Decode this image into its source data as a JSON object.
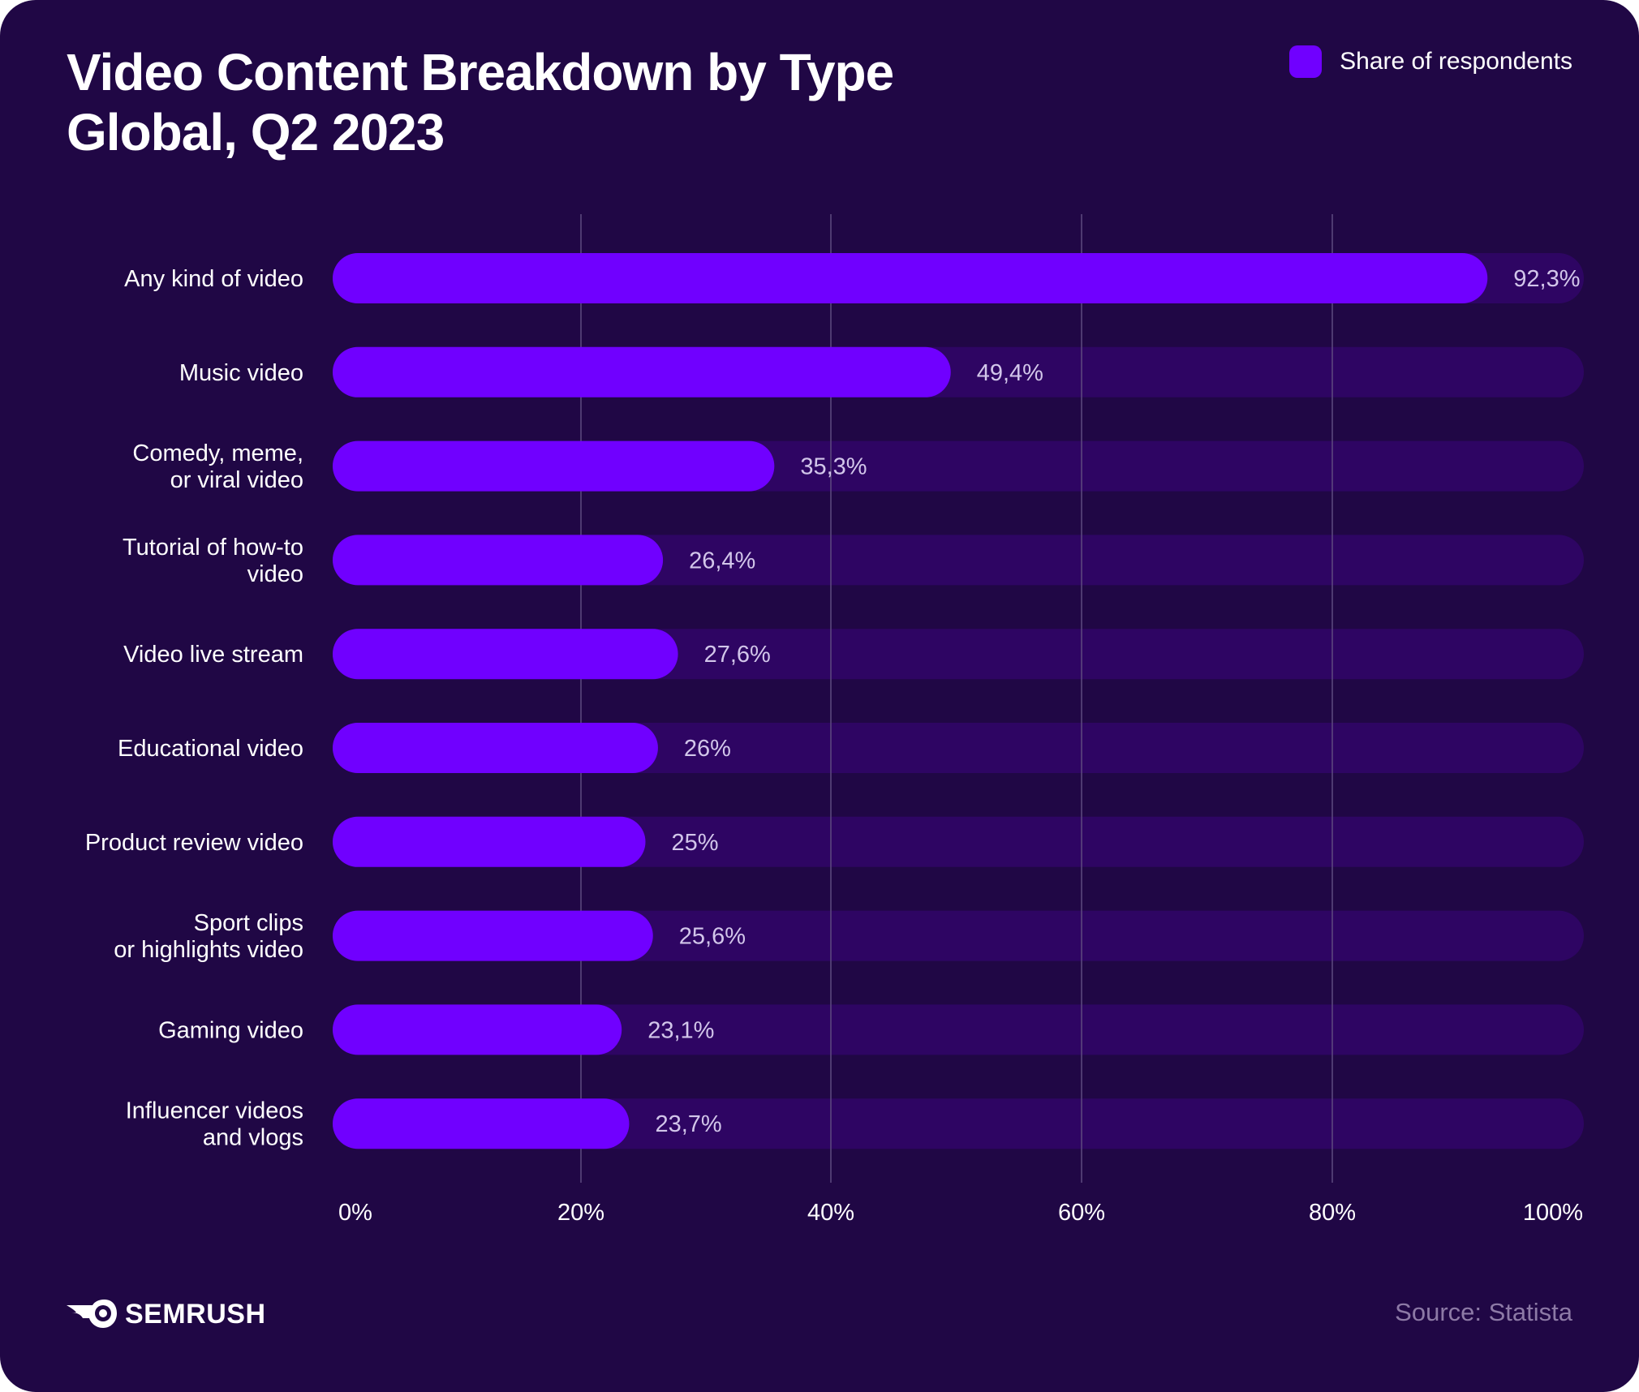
{
  "title_lines": [
    "Video Content Breakdown by Type",
    "Global, Q2 2023"
  ],
  "legend": {
    "label": "Share of respondents"
  },
  "brand": {
    "name": "SEMRUSH",
    "logo_icon": "semrush-fire-icon"
  },
  "source": "Source: Statista",
  "colors": {
    "background": "#200745",
    "bar": "#7000FF",
    "track": "#2E0563",
    "grid": "#5E4B80",
    "category_text": "#FFFFFF",
    "value_text": "#D2C6EA",
    "axis_text": "#FFFFFF",
    "source_text": "#8D7AA6"
  },
  "chart_data": {
    "type": "bar",
    "orientation": "horizontal",
    "title": "Video Content Breakdown by Type Global, Q2 2023",
    "categories": [
      [
        "Any kind of video"
      ],
      [
        "Music video"
      ],
      [
        "Comedy, meme,",
        "or viral video"
      ],
      [
        "Tutorial of how-to",
        "video"
      ],
      [
        "Video live stream"
      ],
      [
        "Educational video"
      ],
      [
        "Product review video"
      ],
      [
        "Sport clips",
        "or highlights video"
      ],
      [
        "Gaming video"
      ],
      [
        "Influencer videos",
        "and vlogs"
      ]
    ],
    "series": [
      {
        "name": "Share of respondents",
        "values": [
          92.3,
          49.4,
          35.3,
          26.4,
          27.6,
          26,
          25,
          25.6,
          23.1,
          23.7
        ],
        "value_labels": [
          "92,3%",
          "49,4%",
          "35,3%",
          "26,4%",
          "27,6%",
          "26%",
          "25%",
          "25,6%",
          "23,1%",
          "23,7%"
        ]
      }
    ],
    "xlim": [
      0,
      100
    ],
    "xticks": [
      0,
      20,
      40,
      60,
      80,
      100
    ],
    "xtick_labels": [
      "0%",
      "20%",
      "40%",
      "60%",
      "80%",
      "100%"
    ],
    "xlabel": "",
    "ylabel": "",
    "grid": true,
    "legend_position": "top-right"
  }
}
